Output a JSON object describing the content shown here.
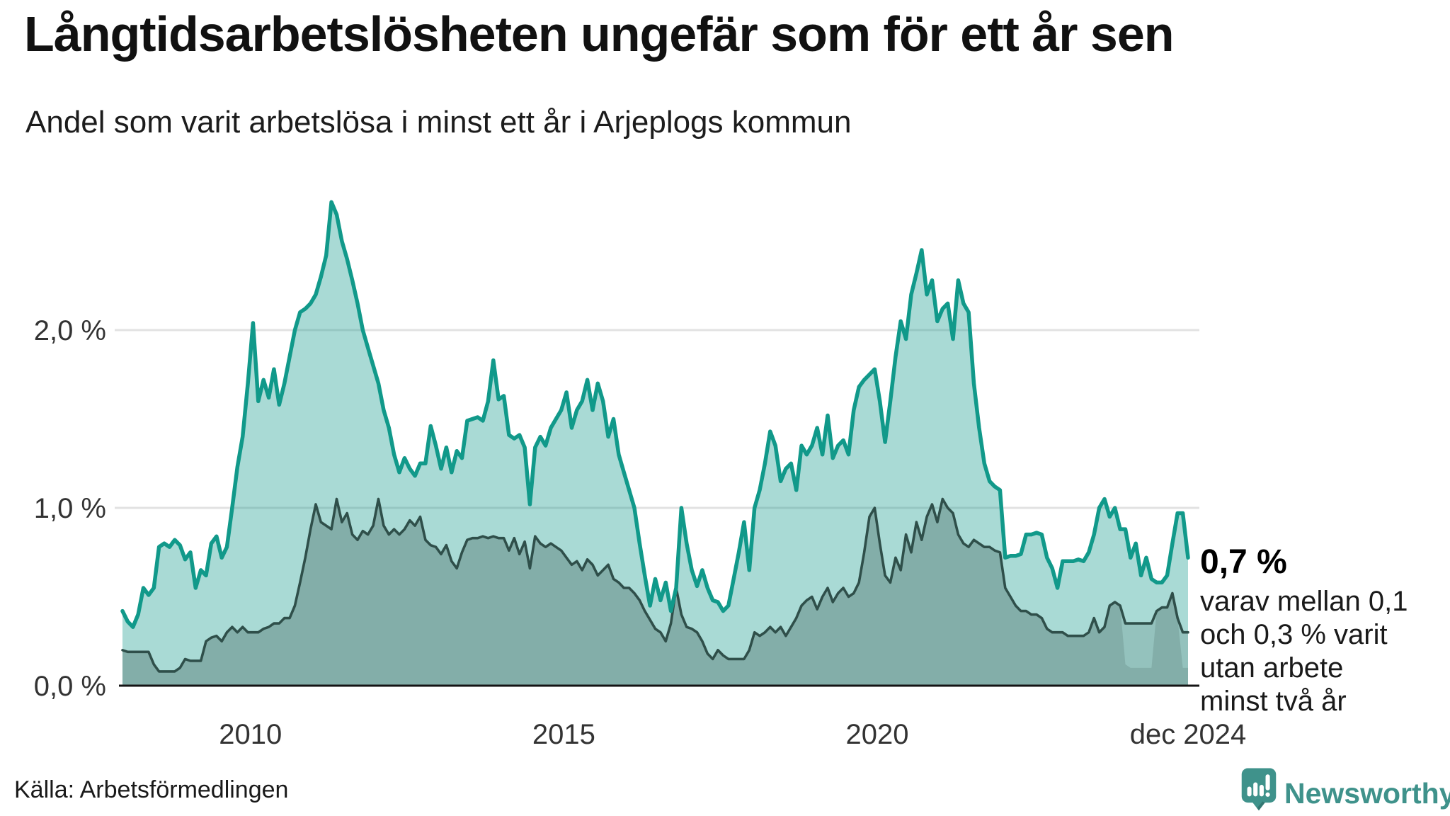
{
  "header": {
    "title": "Långtidsarbetslösheten ungefär som för ett år sen",
    "subtitle": "Andel som varit arbetslösa i minst ett år i Arjeplogs kommun"
  },
  "annotation": {
    "headline": "0,7 %",
    "lines": [
      "varav mellan 0,1",
      "och 0,3 % varit",
      "utan arbete",
      "minst två år"
    ]
  },
  "footer": {
    "source": "Källa: Arbetsförmedlingen",
    "logo_text": "Newsworthy"
  },
  "colors": {
    "teal_line": "#11998A",
    "teal_fill": "rgba(17,153,138,0.36)",
    "dark_line": "#2F4F4A",
    "dark_fill_layer": "rgba(47,79,74,0.17)",
    "gridline": "#E2E2E2",
    "baseline": "#141414",
    "axis_text": "#333333",
    "logo": "#3F928B"
  },
  "chart_data": {
    "type": "area",
    "title": "Långtidsarbetslösheten ungefär som för ett år sen",
    "subtitle": "Andel som varit arbetslösa i minst ett år i Arjeplogs kommun",
    "unit": "%",
    "freq": "monthly",
    "x_start": "2007-12",
    "x_end": "2024-12",
    "ylim": [
      0,
      2.85
    ],
    "grid": "horizontal",
    "legend": "none",
    "y_ticks": [
      {
        "v": 0,
        "label": "0,0 %"
      },
      {
        "v": 1,
        "label": "1,0 %"
      },
      {
        "v": 2,
        "label": "2,0 %"
      }
    ],
    "x_ticks": [
      {
        "i": 24.5,
        "label": "2010"
      },
      {
        "i": 84.5,
        "label": "2015"
      },
      {
        "i": 144.5,
        "label": "2020"
      },
      {
        "i": 204,
        "label": "dec 2024"
      }
    ],
    "series": [
      {
        "name": "Arbetslösa minst ett år",
        "key": "one_year_plus",
        "values": [
          0.42,
          0.36,
          0.33,
          0.4,
          0.55,
          0.51,
          0.55,
          0.78,
          0.8,
          0.78,
          0.82,
          0.79,
          0.71,
          0.75,
          0.55,
          0.65,
          0.62,
          0.8,
          0.84,
          0.72,
          0.78,
          1.0,
          1.23,
          1.4,
          1.7,
          2.04,
          1.6,
          1.72,
          1.62,
          1.78,
          1.58,
          1.7,
          1.85,
          2.0,
          2.1,
          2.12,
          2.15,
          2.2,
          2.3,
          2.42,
          2.72,
          2.65,
          2.5,
          2.4,
          2.28,
          2.15,
          2.0,
          1.9,
          1.8,
          1.7,
          1.55,
          1.45,
          1.3,
          1.2,
          1.28,
          1.22,
          1.18,
          1.25,
          1.25,
          1.46,
          1.35,
          1.22,
          1.34,
          1.2,
          1.32,
          1.28,
          1.49,
          1.5,
          1.51,
          1.49,
          1.6,
          1.83,
          1.61,
          1.63,
          1.41,
          1.39,
          1.41,
          1.34,
          1.02,
          1.34,
          1.4,
          1.35,
          1.45,
          1.5,
          1.55,
          1.65,
          1.45,
          1.55,
          1.6,
          1.72,
          1.55,
          1.7,
          1.6,
          1.4,
          1.5,
          1.3,
          1.2,
          1.1,
          1.0,
          0.8,
          0.62,
          0.45,
          0.6,
          0.48,
          0.58,
          0.42,
          0.55,
          1.0,
          0.8,
          0.65,
          0.56,
          0.65,
          0.55,
          0.48,
          0.47,
          0.42,
          0.45,
          0.6,
          0.75,
          0.92,
          0.65,
          1.0,
          1.1,
          1.25,
          1.43,
          1.35,
          1.15,
          1.22,
          1.25,
          1.1,
          1.35,
          1.3,
          1.35,
          1.45,
          1.3,
          1.52,
          1.28,
          1.35,
          1.38,
          1.3,
          1.55,
          1.68,
          1.72,
          1.75,
          1.78,
          1.6,
          1.37,
          1.6,
          1.85,
          2.05,
          1.95,
          2.2,
          2.32,
          2.45,
          2.2,
          2.28,
          2.05,
          2.12,
          2.15,
          1.95,
          2.28,
          2.15,
          2.1,
          1.7,
          1.45,
          1.25,
          1.15,
          1.12,
          1.1,
          0.72,
          0.73,
          0.73,
          0.74,
          0.85,
          0.85,
          0.86,
          0.85,
          0.72,
          0.66,
          0.55,
          0.7,
          0.7,
          0.7,
          0.71,
          0.7,
          0.75,
          0.85,
          1.0,
          1.05,
          0.95,
          1.0,
          0.88,
          0.88,
          0.72,
          0.8,
          0.62,
          0.72,
          0.6,
          0.58,
          0.58,
          0.62,
          0.8,
          0.97,
          0.97,
          0.72
        ]
      },
      {
        "name": "Arbetslösa minst två år (övre gräns)",
        "key": "two_years_plus_upper",
        "values": [
          0.2,
          0.19,
          0.19,
          0.19,
          0.19,
          0.19,
          0.12,
          0.08,
          0.08,
          0.08,
          0.08,
          0.1,
          0.15,
          0.14,
          0.14,
          0.14,
          0.25,
          0.27,
          0.28,
          0.25,
          0.3,
          0.33,
          0.3,
          0.33,
          0.3,
          0.3,
          0.3,
          0.32,
          0.33,
          0.35,
          0.35,
          0.38,
          0.38,
          0.45,
          0.58,
          0.72,
          0.88,
          1.02,
          0.92,
          0.9,
          0.88,
          1.05,
          0.92,
          0.97,
          0.85,
          0.82,
          0.87,
          0.85,
          0.9,
          1.05,
          0.9,
          0.85,
          0.88,
          0.85,
          0.88,
          0.93,
          0.9,
          0.95,
          0.82,
          0.79,
          0.78,
          0.74,
          0.79,
          0.7,
          0.66,
          0.75,
          0.82,
          0.83,
          0.83,
          0.84,
          0.83,
          0.84,
          0.83,
          0.83,
          0.76,
          0.83,
          0.74,
          0.81,
          0.66,
          0.84,
          0.8,
          0.78,
          0.8,
          0.78,
          0.76,
          0.72,
          0.68,
          0.7,
          0.65,
          0.71,
          0.68,
          0.62,
          0.65,
          0.68,
          0.6,
          0.58,
          0.55,
          0.55,
          0.52,
          0.48,
          0.42,
          0.37,
          0.32,
          0.3,
          0.25,
          0.35,
          0.55,
          0.4,
          0.33,
          0.32,
          0.3,
          0.25,
          0.18,
          0.15,
          0.2,
          0.17,
          0.15,
          0.15,
          0.15,
          0.15,
          0.2,
          0.3,
          0.28,
          0.3,
          0.33,
          0.3,
          0.33,
          0.28,
          0.33,
          0.38,
          0.45,
          0.48,
          0.5,
          0.43,
          0.5,
          0.55,
          0.47,
          0.52,
          0.55,
          0.5,
          0.52,
          0.58,
          0.75,
          0.95,
          1.0,
          0.8,
          0.62,
          0.58,
          0.72,
          0.65,
          0.85,
          0.75,
          0.92,
          0.82,
          0.95,
          1.02,
          0.92,
          1.05,
          1.0,
          0.97,
          0.85,
          0.8,
          0.78,
          0.82,
          0.8,
          0.78,
          0.78,
          0.76,
          0.75,
          0.55,
          0.5,
          0.45,
          0.42,
          0.42,
          0.4,
          0.4,
          0.38,
          0.32,
          0.3,
          0.3,
          0.3,
          0.28,
          0.28,
          0.28,
          0.28,
          0.3,
          0.38,
          0.3,
          0.33,
          0.45,
          0.47,
          0.45,
          0.35,
          0.35,
          0.35,
          0.35,
          0.35,
          0.35,
          0.42,
          0.44,
          0.44,
          0.52,
          0.38,
          0.3,
          0.3
        ]
      }
    ],
    "two_years_lower_overrides": {
      "192": 0.12,
      "193": 0.1,
      "194": 0.1,
      "195": 0.1,
      "196": 0.1,
      "197": 0.1,
      "203": 0.1,
      "204": 0.1
    },
    "latest_value_label": "0,7 %"
  }
}
